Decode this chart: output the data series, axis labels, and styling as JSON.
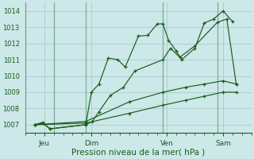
{
  "background_color": "#cce8e8",
  "grid_color": "#aacccc",
  "line_color": "#1a5c1a",
  "xlabel": "Pression niveau de la mer( hPa )",
  "ylim": [
    1006.5,
    1014.5
  ],
  "yticks": [
    1007,
    1008,
    1009,
    1010,
    1011,
    1012,
    1013,
    1014
  ],
  "xlim": [
    0,
    12
  ],
  "day_positions": [
    1.0,
    3.5,
    7.5,
    10.5
  ],
  "day_labels": [
    "Jeu",
    "Dim",
    "Ven",
    "Sam"
  ],
  "day_vlines": [
    1.5,
    3.2,
    7.3,
    10.2
  ],
  "series1_x": [
    0.5,
    0.9,
    1.3,
    3.2,
    3.5,
    3.9,
    4.4,
    4.9,
    5.3,
    6.0,
    6.5,
    7.0,
    7.3,
    7.6,
    8.0,
    8.3,
    9.0,
    9.5,
    10.0,
    10.5,
    11.0
  ],
  "series1_y": [
    1007.0,
    1007.15,
    1006.75,
    1007.0,
    1009.0,
    1009.5,
    1011.1,
    1011.0,
    1010.55,
    1012.45,
    1012.5,
    1013.2,
    1013.2,
    1012.2,
    1011.55,
    1011.0,
    1011.7,
    1013.25,
    1013.5,
    1014.0,
    1013.35
  ],
  "series2_x": [
    0.5,
    0.9,
    1.3,
    3.2,
    3.55,
    3.9,
    4.5,
    5.2,
    5.8,
    7.3,
    7.7,
    8.2,
    9.0,
    10.2,
    10.7,
    11.2
  ],
  "series2_y": [
    1007.0,
    1007.1,
    1006.75,
    1007.0,
    1007.2,
    1007.8,
    1008.8,
    1009.3,
    1010.3,
    1011.0,
    1011.7,
    1011.15,
    1011.85,
    1013.3,
    1013.5,
    1009.5
  ],
  "series3_x": [
    0.5,
    3.2,
    5.5,
    7.3,
    8.5,
    9.5,
    10.5,
    11.2
  ],
  "series3_y": [
    1007.0,
    1007.2,
    1008.4,
    1009.0,
    1009.3,
    1009.5,
    1009.7,
    1009.5
  ],
  "series4_x": [
    0.5,
    3.2,
    5.5,
    7.3,
    8.5,
    9.5,
    10.5,
    11.2
  ],
  "series4_y": [
    1007.0,
    1007.1,
    1007.7,
    1008.2,
    1008.5,
    1008.75,
    1009.0,
    1009.0
  ]
}
